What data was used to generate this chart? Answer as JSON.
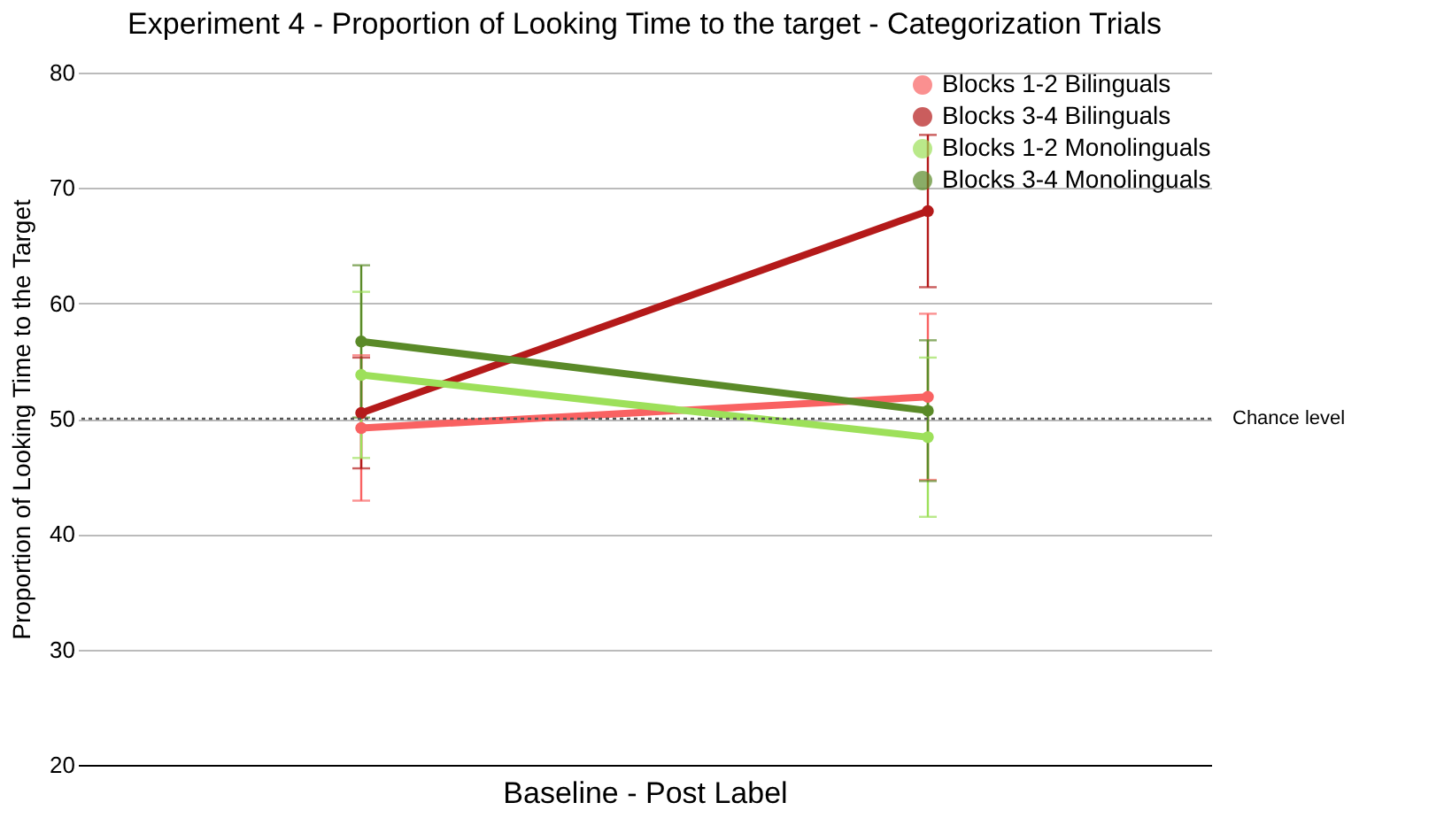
{
  "chart_data": {
    "type": "line",
    "title": "Experiment 4 -  Proportion of Looking Time to the target - Categorization Trials",
    "xlabel": "Baseline      -      Post Label",
    "ylabel": "Proportion of Looking Time to the Target",
    "categories": [
      null,
      null
    ],
    "series": [
      {
        "name": "Blocks 1-2 Bilinguals",
        "color": "#f96262",
        "values": [
          49.2,
          51.9
        ],
        "errors": [
          6.3,
          7.2
        ]
      },
      {
        "name": "Blocks 3-4 Bilinguals",
        "color": "#b41a1a",
        "values": [
          50.5,
          68.0
        ],
        "errors": [
          4.8,
          6.6
        ]
      },
      {
        "name": "Blocks 1-2 Monolinguals",
        "color": "#9de05a",
        "values": [
          53.8,
          48.4
        ],
        "errors": [
          7.2,
          6.9
        ]
      },
      {
        "name": "Blocks 3-4 Monolinguals",
        "color": "#5a8a28",
        "values": [
          56.7,
          50.7
        ],
        "errors": [
          6.6,
          6.1
        ]
      }
    ],
    "ylim": [
      20,
      80
    ],
    "yticks": [
      20,
      30,
      40,
      50,
      60,
      70,
      80
    ],
    "grid": "y",
    "ref_lines": [
      {
        "axis": "y",
        "value": 50,
        "label": "Chance level",
        "color": "#555555",
        "line_style": "dotted"
      }
    ],
    "legend": "top right",
    "marker": "circle",
    "line_style": "solid"
  }
}
